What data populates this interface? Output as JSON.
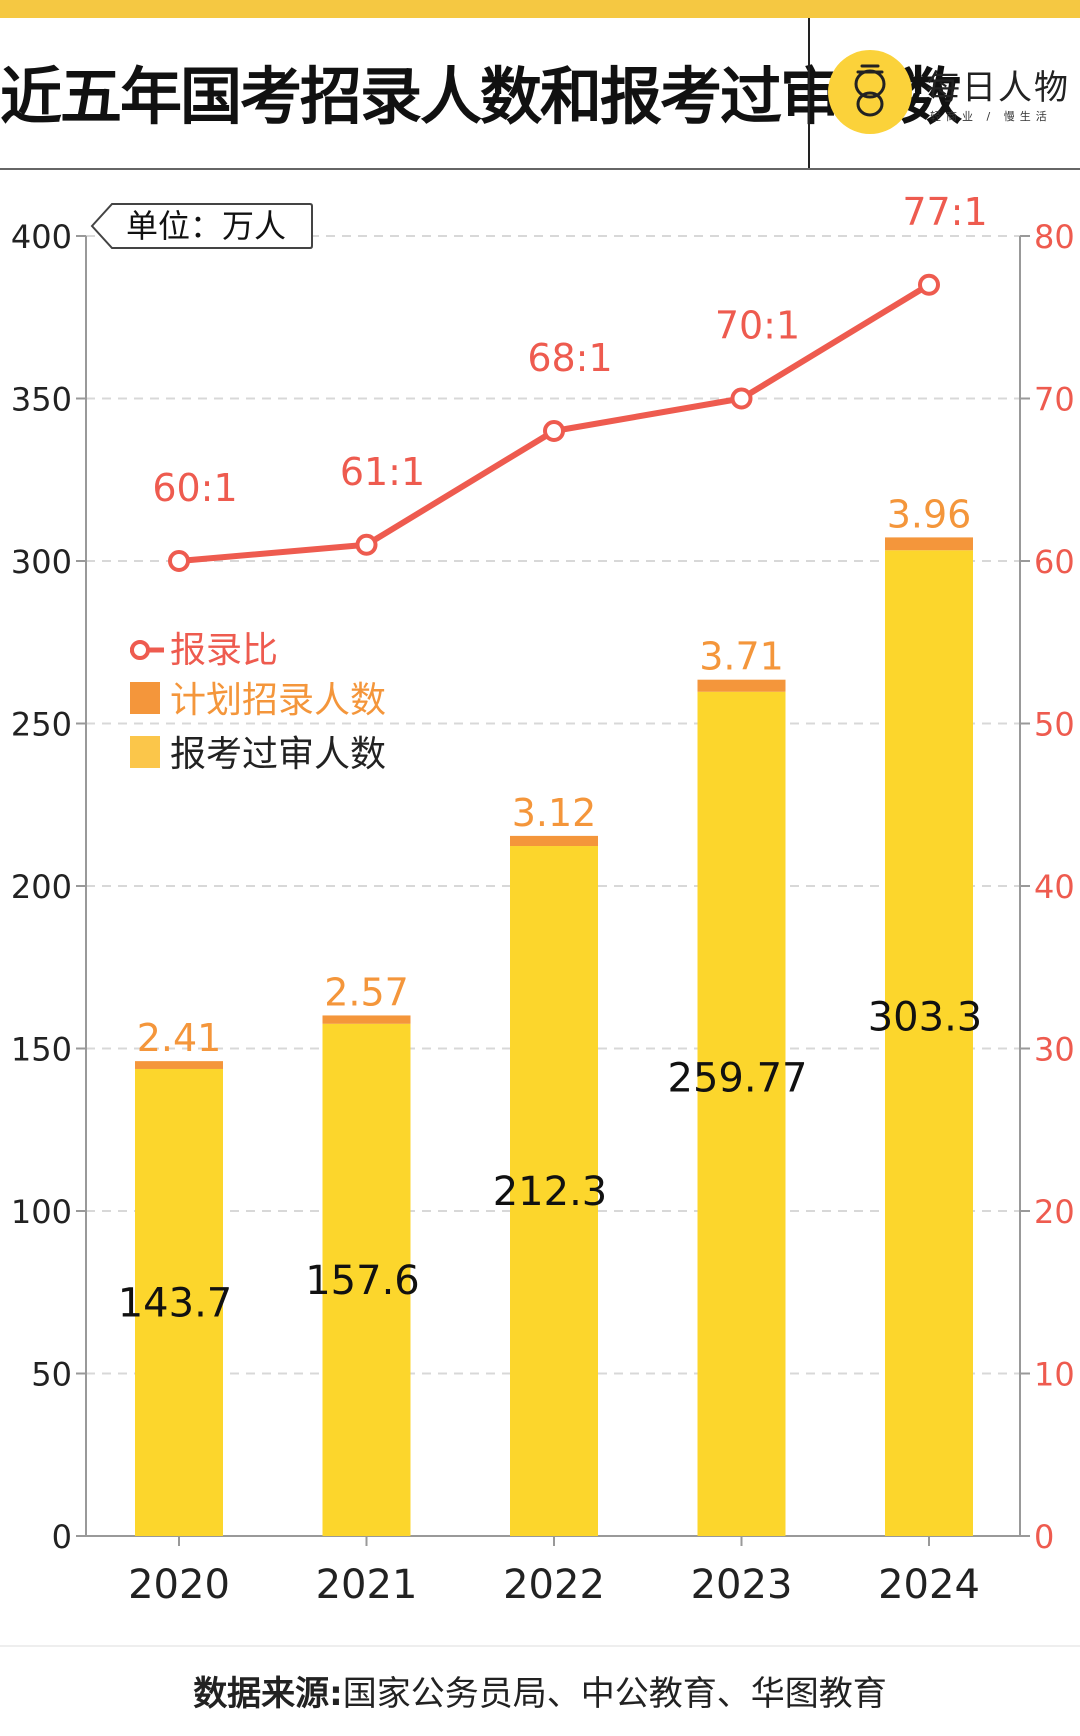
{
  "header": {
    "title": "近五年国考招录人数和报考过审人数",
    "logo": {
      "name": "每日人物",
      "slogan": "轻商业 / 慢生活"
    }
  },
  "colors": {
    "top_bar": "#f5c842",
    "bar_examinees": "#fcd62c",
    "bar_recruit": "#f4963b",
    "ratio_line": "#ee5b4f",
    "axis_right": "#ee5b4f",
    "logo_circle": "#fbd23a"
  },
  "chart_data": {
    "type": "bar",
    "unit_label": "单位：万人",
    "categories": [
      "2020",
      "2021",
      "2022",
      "2023",
      "2024"
    ],
    "series": [
      {
        "name": "报考过审人数",
        "type": "bar",
        "axis": "left",
        "values": [
          143.7,
          157.6,
          212.3,
          259.77,
          303.3
        ],
        "labels": [
          "143.7",
          "157.6",
          "212.3",
          "259.77",
          "303.3"
        ]
      },
      {
        "name": "计划招录人数",
        "type": "bar",
        "axis": "left",
        "stacked": true,
        "values": [
          2.41,
          2.57,
          3.12,
          3.71,
          3.96
        ],
        "labels": [
          "2.41",
          "2.57",
          "3.12",
          "3.71",
          "3.96"
        ]
      },
      {
        "name": "报录比",
        "type": "line",
        "axis": "right",
        "values": [
          60,
          61,
          68,
          70,
          77
        ],
        "labels": [
          "60:1",
          "61:1",
          "68:1",
          "70:1",
          "77:1"
        ]
      }
    ],
    "y_left": {
      "min": 0,
      "max": 400,
      "ticks": [
        0,
        50,
        100,
        150,
        200,
        250,
        300,
        350,
        400
      ]
    },
    "y_right": {
      "min": 0,
      "max": 80,
      "ticks": [
        0,
        10,
        20,
        30,
        40,
        50,
        60,
        70,
        80
      ]
    },
    "legend": {
      "placement": "top-left",
      "items": [
        {
          "label": "报录比",
          "series": 2
        },
        {
          "label": "计划招录人数",
          "series": 1
        },
        {
          "label": "报考过审人数",
          "series": 0
        }
      ]
    },
    "grid": true
  },
  "footer": {
    "label": "数据来源:",
    "text": "国家公务员局、中公教育、华图教育"
  }
}
